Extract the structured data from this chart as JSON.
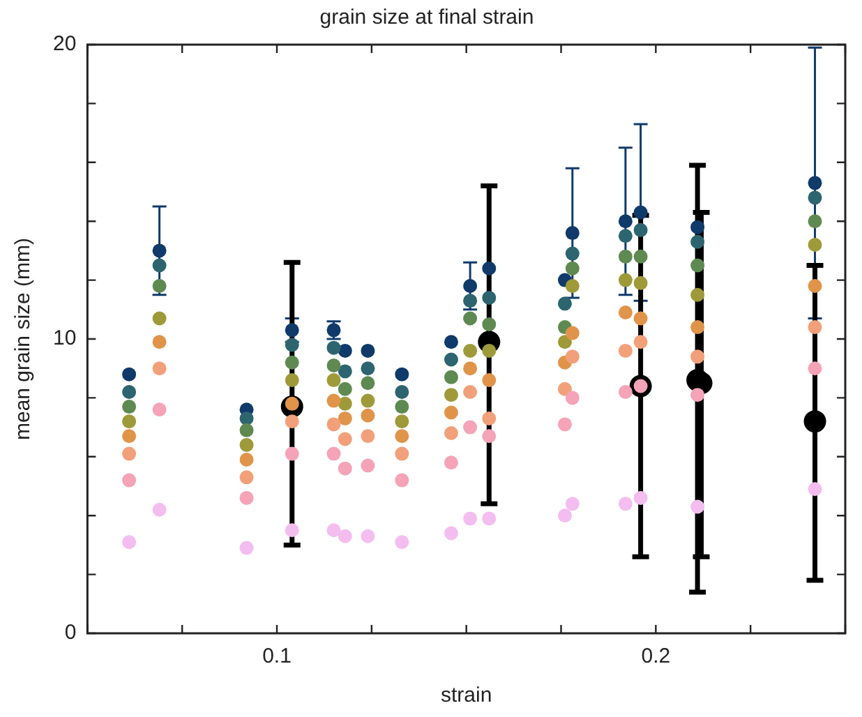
{
  "chart_data": {
    "type": "scatter",
    "title": "grain size at final strain",
    "xlabel": "strain",
    "ylabel": "mean grain size (mm)",
    "x": [
      0.061,
      0.069,
      0.092,
      0.104,
      0.115,
      0.118,
      0.124,
      0.133,
      0.146,
      0.151,
      0.156,
      0.176,
      0.178,
      0.192,
      0.196,
      0.211,
      0.242
    ],
    "xlim": [
      0.05,
      0.25
    ],
    "xticks": [
      {
        "value": 0.05,
        "label": null
      },
      {
        "value": 0.075,
        "label": null
      },
      0.1,
      {
        "value": 0.125,
        "label": null
      },
      {
        "value": 0.15,
        "label": null
      },
      {
        "value": 0.175,
        "label": null
      },
      0.2,
      {
        "value": 0.225,
        "label": null
      },
      {
        "value": 0.25,
        "label": null
      }
    ],
    "ylim": [
      0,
      20
    ],
    "yticks": [
      0,
      {
        "value": 2,
        "label": null
      },
      {
        "value": 4,
        "label": null
      },
      {
        "value": 6,
        "label": null
      },
      {
        "value": 8,
        "label": null
      },
      10,
      {
        "value": 12,
        "label": null
      },
      {
        "value": 14,
        "label": null
      },
      {
        "value": 16,
        "label": null
      },
      {
        "value": 18,
        "label": null
      },
      20
    ],
    "marker": "circle",
    "legend": false,
    "series": [
      {
        "color": "#f4bdf0",
        "values": [
          3.1,
          4.2,
          2.9,
          3.5,
          3.5,
          3.3,
          3.3,
          3.1,
          3.4,
          3.9,
          3.9,
          4.0,
          4.4,
          4.4,
          4.6,
          4.3,
          4.9
        ]
      },
      {
        "color": "#f5a3b7",
        "values": [
          5.2,
          7.6,
          4.6,
          6.1,
          6.1,
          5.6,
          5.7,
          5.2,
          5.8,
          7.0,
          6.7,
          7.1,
          8.0,
          8.2,
          8.4,
          8.1,
          9.0
        ]
      },
      {
        "color": "#f2a07a",
        "values": [
          6.1,
          9.0,
          5.3,
          7.2,
          7.1,
          6.6,
          6.7,
          6.1,
          6.8,
          8.2,
          7.3,
          8.3,
          9.4,
          9.6,
          9.9,
          9.4,
          10.4
        ]
      },
      {
        "color": "#e0944a",
        "values": [
          6.7,
          9.9,
          5.9,
          7.8,
          7.9,
          7.3,
          7.4,
          6.7,
          7.5,
          9.0,
          8.6,
          9.2,
          10.2,
          10.9,
          10.7,
          10.4,
          11.8
        ]
      },
      {
        "color": "#9e9a3a",
        "values": [
          7.2,
          10.7,
          6.4,
          8.6,
          8.6,
          7.8,
          7.9,
          7.2,
          8.1,
          9.6,
          9.6,
          9.9,
          11.8,
          12.0,
          11.9,
          11.5,
          13.2
        ]
      },
      {
        "color": "#5e8a52",
        "values": [
          7.7,
          11.8,
          6.9,
          9.2,
          9.1,
          8.3,
          8.5,
          7.7,
          8.7,
          10.7,
          10.5,
          10.4,
          12.4,
          12.8,
          12.8,
          12.5,
          14.0
        ]
      },
      {
        "color": "#2c6570",
        "values": [
          8.2,
          12.5,
          7.3,
          9.8,
          9.7,
          8.9,
          9.0,
          8.2,
          9.3,
          11.3,
          11.4,
          11.2,
          12.9,
          13.5,
          13.7,
          13.3,
          14.8
        ]
      },
      {
        "color": "#0f3a6a",
        "values": [
          8.8,
          13.0,
          7.6,
          10.3,
          10.3,
          9.6,
          9.6,
          8.8,
          9.9,
          11.8,
          12.4,
          12.0,
          13.6,
          14.0,
          14.3,
          13.8,
          15.3
        ],
        "errors": [
          null,
          1.5,
          null,
          0.4,
          0.3,
          null,
          null,
          null,
          null,
          0.8,
          null,
          null,
          2.2,
          2.5,
          3.0,
          null,
          4.6
        ]
      },
      {
        "color": "#000000",
        "x": [
          0.104,
          0.156,
          0.196,
          0.211,
          0.212,
          0.242
        ],
        "values": [
          7.7,
          9.9,
          8.4,
          8.6,
          8.5,
          7.2
        ],
        "errors": [
          [
            3.0,
            12.6
          ],
          [
            4.4,
            15.2
          ],
          [
            2.6,
            14.2
          ],
          [
            1.4,
            15.9
          ],
          [
            2.6,
            14.3
          ],
          [
            1.8,
            12.5
          ]
        ]
      }
    ]
  }
}
